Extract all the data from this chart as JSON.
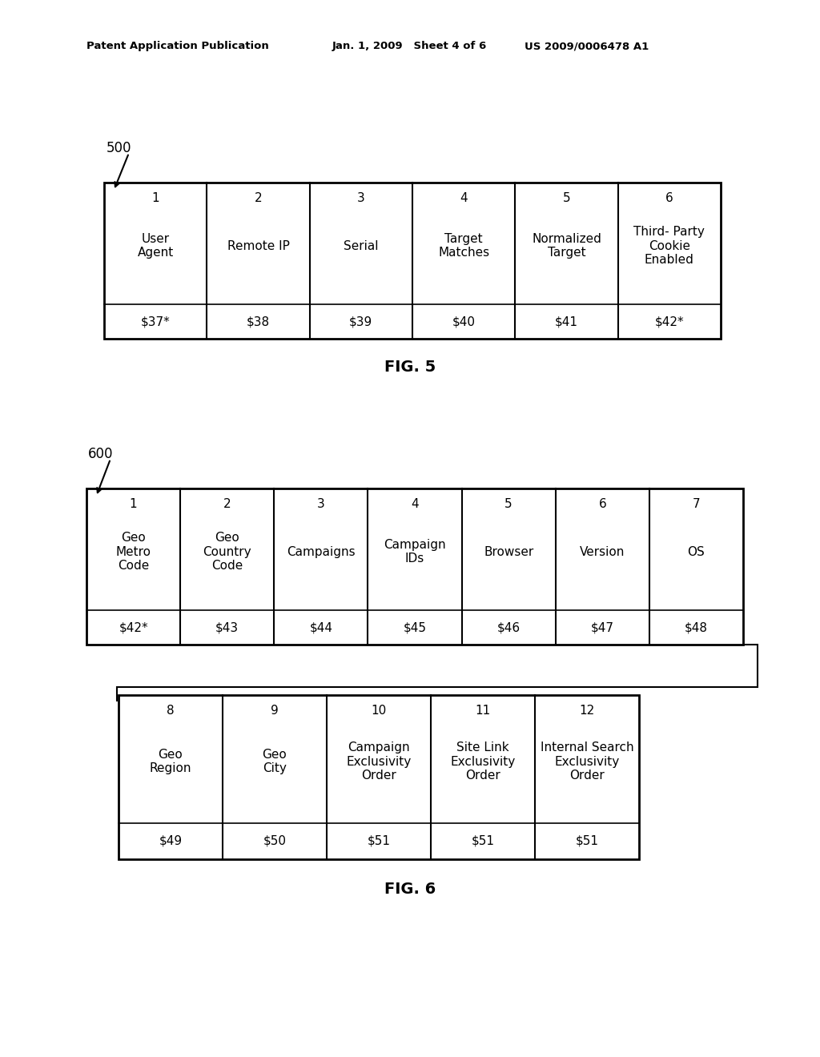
{
  "header_left": "Patent Application Publication",
  "header_mid": "Jan. 1, 2009   Sheet 4 of 6",
  "header_right": "US 2009/0006478 A1",
  "fig5_label": "500",
  "fig5_caption": "FIG. 5",
  "fig5_columns": [
    {
      "num": "1",
      "label": "User\nAgent",
      "value": "$37*"
    },
    {
      "num": "2",
      "label": "Remote IP",
      "value": "$38"
    },
    {
      "num": "3",
      "label": "Serial",
      "value": "$39"
    },
    {
      "num": "4",
      "label": "Target\nMatches",
      "value": "$40"
    },
    {
      "num": "5",
      "label": "Normalized\nTarget",
      "value": "$41"
    },
    {
      "num": "6",
      "label": "Third- Party\nCookie\nEnabled",
      "value": "$42*"
    }
  ],
  "fig6_label": "600",
  "fig6_caption": "FIG. 6",
  "fig6_top_columns": [
    {
      "num": "1",
      "label": "Geo\nMetro\nCode",
      "value": "$42*"
    },
    {
      "num": "2",
      "label": "Geo\nCountry\nCode",
      "value": "$43"
    },
    {
      "num": "3",
      "label": "Campaigns",
      "value": "$44"
    },
    {
      "num": "4",
      "label": "Campaign\nIDs",
      "value": "$45"
    },
    {
      "num": "5",
      "label": "Browser",
      "value": "$46"
    },
    {
      "num": "6",
      "label": "Version",
      "value": "$47"
    },
    {
      "num": "7",
      "label": "OS",
      "value": "$48"
    }
  ],
  "fig6_bot_columns": [
    {
      "num": "8",
      "label": "Geo\nRegion",
      "value": "$49"
    },
    {
      "num": "9",
      "label": "Geo\nCity",
      "value": "$50"
    },
    {
      "num": "10",
      "label": "Campaign\nExclusivity\nOrder",
      "value": "$51"
    },
    {
      "num": "11",
      "label": "Site Link\nExclusivity\nOrder",
      "value": "$51"
    },
    {
      "num": "12",
      "label": "Internal Search\nExclusivity\nOrder",
      "value": "$51"
    }
  ],
  "bg_color": "#ffffff",
  "border_color": "#000000",
  "text_color": "#000000"
}
